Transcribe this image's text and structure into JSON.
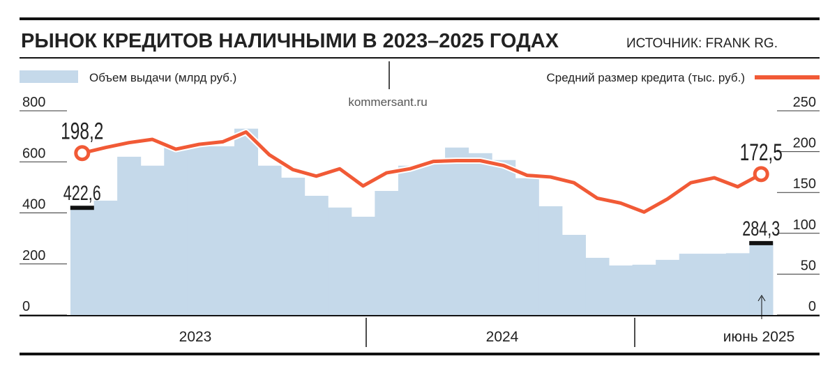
{
  "chart_data": {
    "type": "bar-line",
    "title": "РЫНОК КРЕДИТОВ НАЛИЧНЫМИ В 2023–2025 ГОДАХ",
    "source": "ИСТОЧНИК: FRANK RG.",
    "watermark": "kommersant.ru",
    "categories": [
      null,
      null,
      null,
      null,
      null,
      null,
      null,
      null,
      null,
      null,
      null,
      null,
      null,
      null,
      null,
      null,
      null,
      null,
      null,
      null,
      null,
      null,
      null,
      null,
      null,
      null,
      null,
      null,
      null,
      null
    ],
    "period_labels": [
      "2023",
      "2024",
      "июнь 2025"
    ],
    "series": [
      {
        "name": "Объем выдачи (млрд руб.)",
        "color": "#c5d9ea",
        "type": "bar",
        "values": [
          422.6,
          448,
          620,
          585,
          656,
          661,
          661,
          730,
          585,
          538,
          467,
          421,
          385,
          486,
          585,
          600,
          656,
          634,
          607,
          536,
          426,
          314,
          224,
          194,
          197,
          216,
          240,
          240,
          242,
          284.3
        ],
        "value_labels": [
          "422,6",
          null,
          null,
          null,
          null,
          null,
          null,
          null,
          null,
          null,
          null,
          null,
          null,
          null,
          null,
          null,
          null,
          null,
          null,
          null,
          null,
          null,
          null,
          null,
          null,
          null,
          null,
          null,
          null,
          "284,3"
        ]
      },
      {
        "name": "Средний размер кредита (тыс. руб.)",
        "color": "#f15a36",
        "type": "line",
        "axis": "y2",
        "values": [
          198.2,
          205,
          211,
          215,
          203,
          209,
          212,
          224,
          196,
          178,
          170,
          179,
          158,
          174,
          179,
          188,
          189,
          189,
          183,
          171,
          169,
          162,
          143,
          137,
          126,
          142,
          162,
          168,
          157,
          172.5
        ],
        "value_labels": [
          "198,2",
          null,
          null,
          null,
          null,
          null,
          null,
          null,
          null,
          null,
          null,
          null,
          null,
          null,
          null,
          null,
          null,
          null,
          null,
          null,
          null,
          null,
          null,
          null,
          null,
          null,
          null,
          null,
          null,
          "172,5"
        ]
      }
    ],
    "ylim": [
      0,
      800
    ],
    "yticks": [
      0,
      200,
      400,
      600,
      800
    ],
    "y2lim": [
      0,
      250
    ],
    "y2ticks": [
      0,
      50,
      100,
      150,
      200,
      250
    ]
  }
}
